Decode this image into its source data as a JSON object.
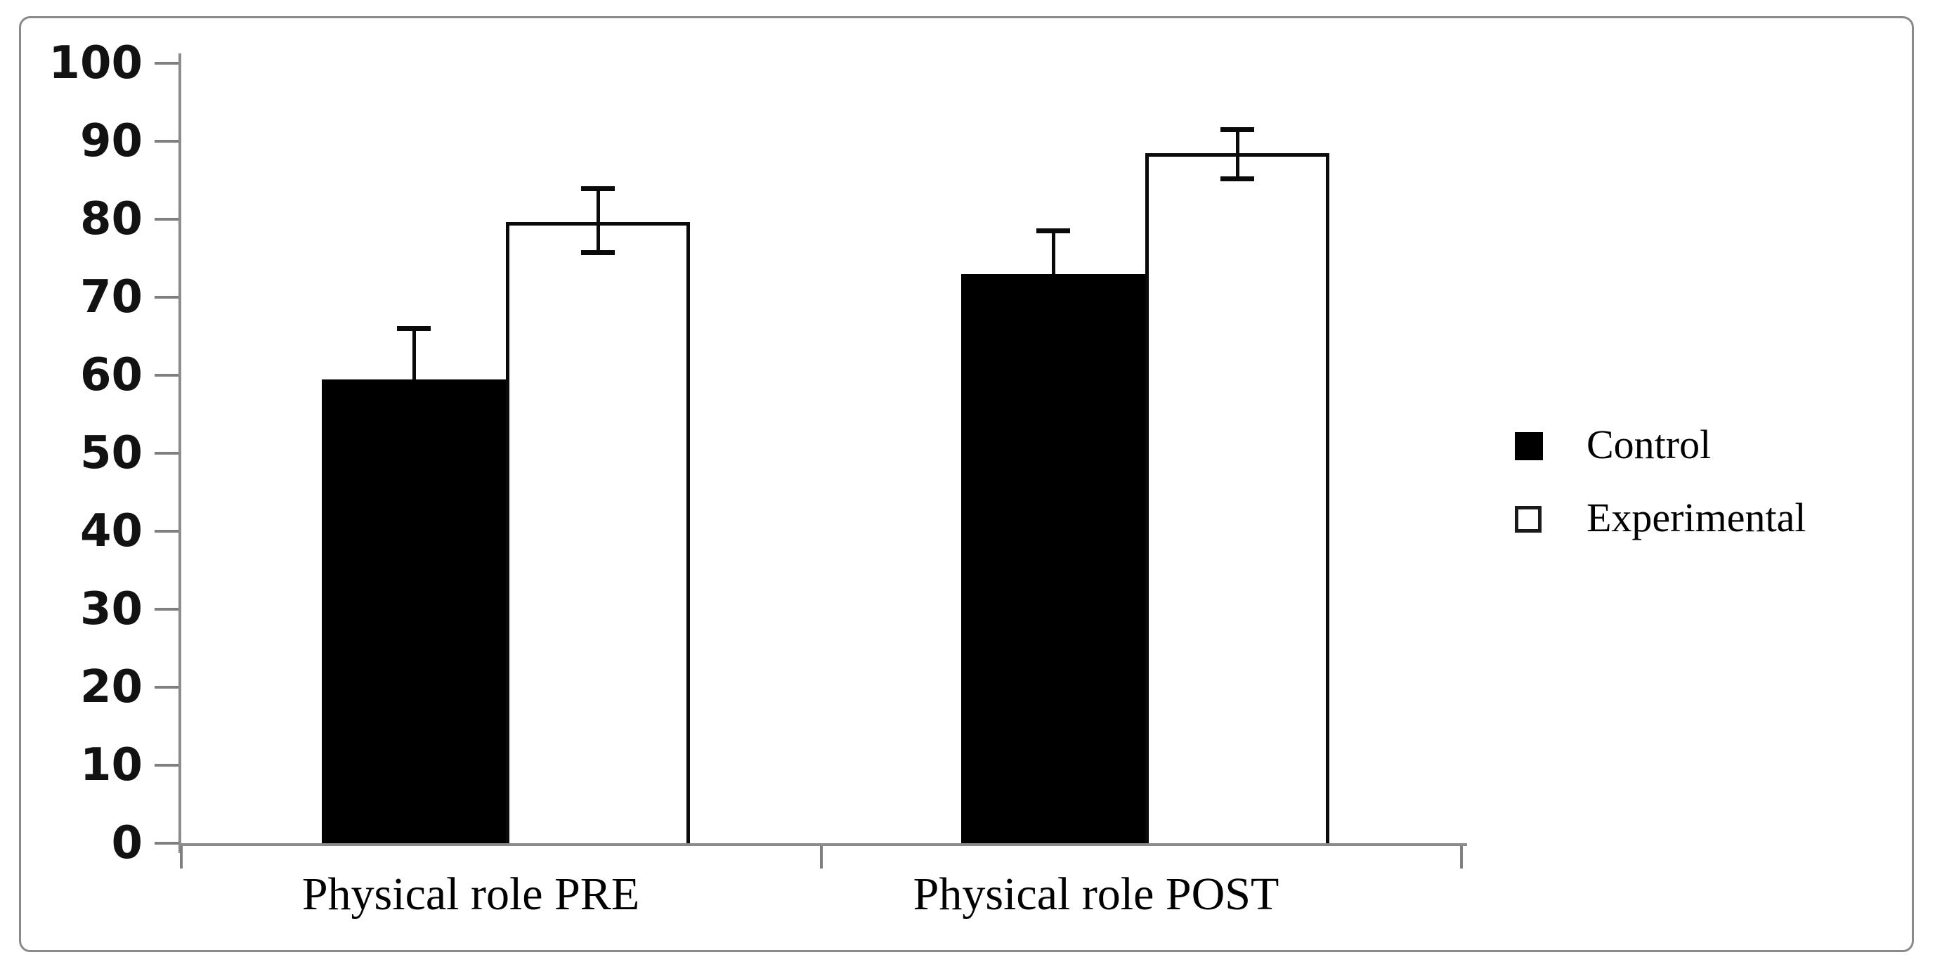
{
  "figure": {
    "kind": "grouped bar chart with error bars",
    "background_color": "#ffffff",
    "frame_border_color": "#8a8a8a",
    "axis_color": "#8c8c8c",
    "bar_colors": {
      "control": "#000000",
      "experimental": "#ffffff"
    },
    "error_bar_color": "#0a0a0a"
  },
  "chart_data": {
    "type": "bar",
    "categories": [
      "Physical role PRE",
      "Physical role POST"
    ],
    "series": [
      {
        "name": "Control",
        "fill": "#000000",
        "values": [
          59.5,
          73
        ],
        "error_high": [
          66,
          78.5
        ],
        "error_low": [
          null,
          null
        ]
      },
      {
        "name": "Experimental",
        "fill": "#ffffff",
        "values": [
          79.6,
          88.5
        ],
        "error_high": [
          83.9,
          91.5
        ],
        "error_low": [
          75.7,
          85.2
        ]
      }
    ],
    "title": "",
    "xlabel": "",
    "ylabel": "",
    "ylim": [
      0,
      100
    ],
    "ytick_step": 10,
    "grid": false,
    "legend_position": "right-middle"
  },
  "y_axis": {
    "tick_labels": [
      "100",
      "90",
      "80",
      "70",
      "60",
      "50",
      "40",
      "30",
      "20",
      "10",
      "0"
    ],
    "tick_values": [
      100,
      90,
      80,
      70,
      60,
      50,
      40,
      30,
      20,
      10,
      0
    ]
  },
  "x_axis": {
    "labels": [
      "Physical role PRE",
      "Physical role POST"
    ]
  },
  "legend": {
    "items": [
      {
        "label": "Control",
        "swatch": "filled-black-square"
      },
      {
        "label": "Experimental",
        "swatch": "outlined-white-square"
      }
    ]
  }
}
